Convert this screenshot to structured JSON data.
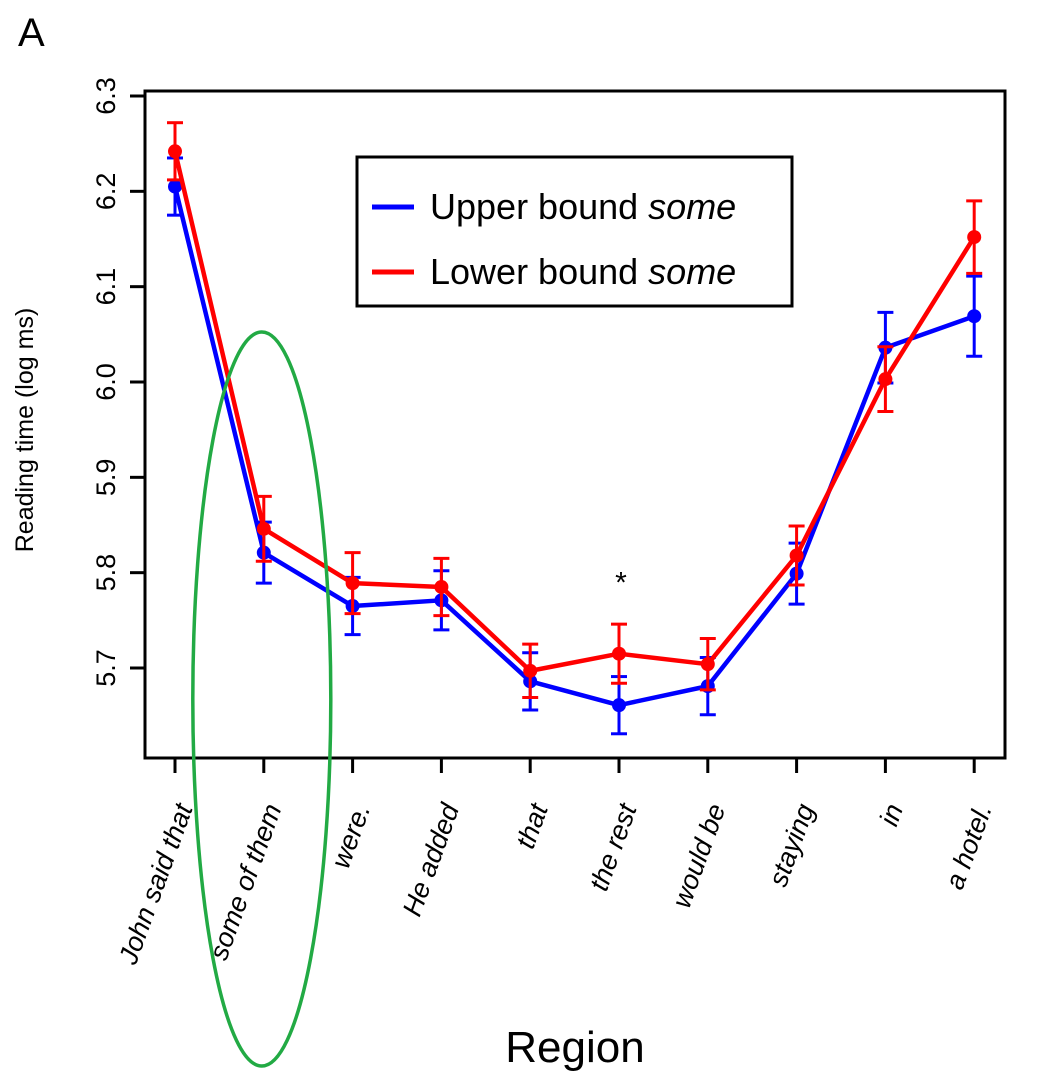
{
  "panel_label": "A",
  "chart_data": {
    "type": "line",
    "title": "",
    "xlabel": "Region",
    "ylabel": "Reading time (log ms)",
    "ylim": [
      5.605,
      6.3
    ],
    "yticks": [
      "5.7",
      "5.8",
      "5.9",
      "6.0",
      "6.1",
      "6.2",
      "6.3"
    ],
    "categories": [
      "John said that",
      "some of them",
      "were.",
      "He added",
      "that",
      "the rest",
      "would be",
      "staying",
      "in",
      "a hotel."
    ],
    "series": [
      {
        "name": "Upper bound some",
        "name_prefix": "Upper bound ",
        "name_italic": "some",
        "color": "#0000ff",
        "values": [
          6.205,
          5.821,
          5.765,
          5.771,
          5.686,
          5.661,
          5.681,
          5.799,
          6.036,
          6.069
        ],
        "error": [
          0.03,
          0.032,
          0.03,
          0.031,
          0.03,
          0.03,
          0.03,
          0.032,
          0.037,
          0.042
        ]
      },
      {
        "name": "Lower bound some",
        "name_prefix": "Lower bound ",
        "name_italic": "some",
        "color": "#ff0000",
        "values": [
          6.242,
          5.846,
          5.789,
          5.785,
          5.697,
          5.715,
          5.704,
          5.818,
          6.003,
          6.152
        ],
        "error": [
          0.03,
          0.034,
          0.032,
          0.03,
          0.028,
          0.031,
          0.027,
          0.031,
          0.034,
          0.038
        ]
      }
    ],
    "annotations": [
      {
        "text": "*",
        "category": "the rest",
        "value": 5.8
      }
    ],
    "highlight": {
      "shape": "ellipse",
      "color": "#22aa44",
      "category": "some of them"
    },
    "legend": {
      "placement": "top-center"
    },
    "grid": false
  }
}
